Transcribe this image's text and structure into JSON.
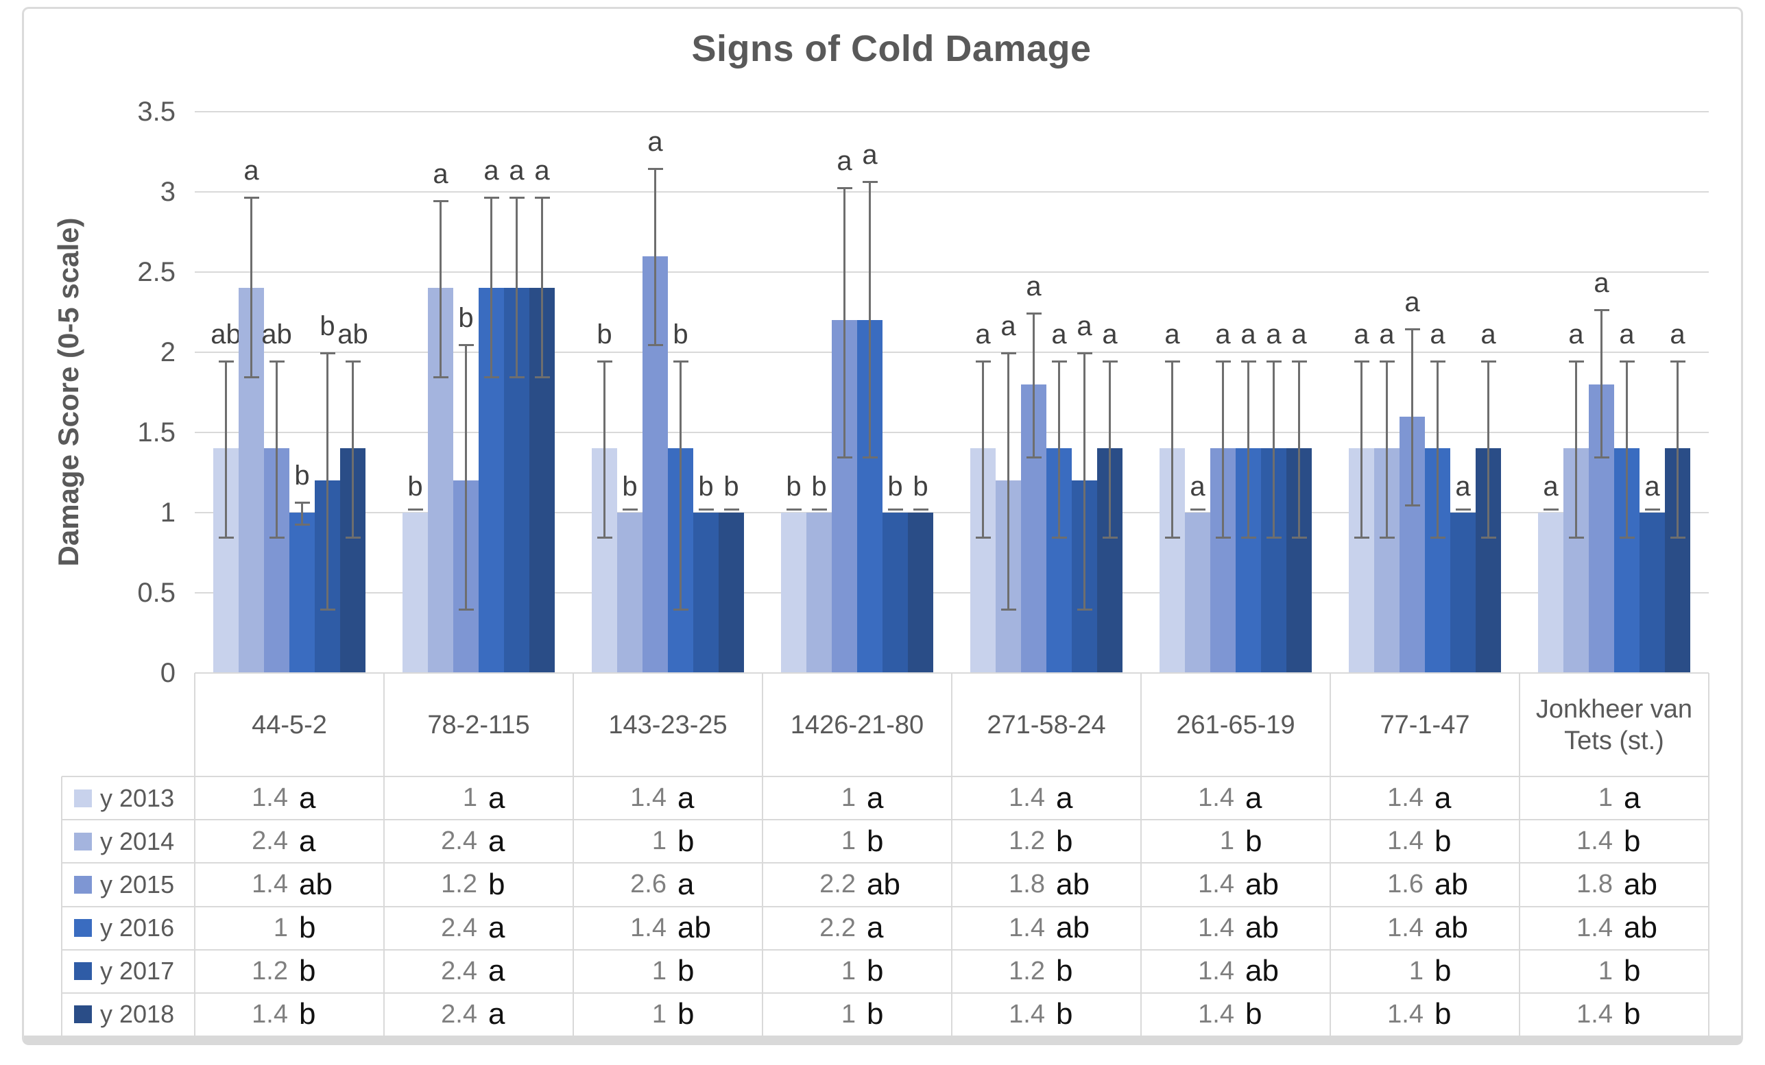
{
  "chart_data": {
    "type": "bar",
    "title": "Signs of Cold Damage",
    "ylabel": "Damage Score (0-5 scale)",
    "ylim": [
      0,
      3.5
    ],
    "ytick_labels": [
      "0",
      "0.5",
      "1",
      "1.5",
      "2",
      "2.5",
      "3",
      "3.5"
    ],
    "ytick_values": [
      0,
      0.5,
      1,
      1.5,
      2,
      2.5,
      3,
      3.5
    ],
    "grid": true,
    "legend_position": "table-left",
    "error_bars": true,
    "categories": [
      "44-5-2",
      "78-2-115",
      "143-23-25",
      "1426-21-80",
      "271-58-24",
      "261-65-19",
      "77-1-47",
      "Jonkheer van Tets (st.)"
    ],
    "series": [
      {
        "name": "y 2013",
        "color": "#c8d2ec",
        "values": [
          1.4,
          1,
          1.4,
          1,
          1.4,
          1.4,
          1.4,
          1
        ],
        "err_lo": [
          0.85,
          null,
          0.85,
          null,
          0.85,
          0.85,
          0.85,
          null
        ],
        "err_hi": [
          1.95,
          null,
          1.95,
          null,
          1.95,
          1.95,
          1.95,
          null
        ],
        "bar_letters": [
          "ab",
          "b",
          "b",
          "b",
          "a",
          "a",
          "a",
          "a"
        ],
        "table_letters": [
          "a",
          "a",
          "a",
          "a",
          "a",
          "a",
          "a",
          "a"
        ]
      },
      {
        "name": "y 2014",
        "color": "#a4b4de",
        "values": [
          2.4,
          2.4,
          1,
          1,
          1.2,
          1,
          1.4,
          1.4
        ],
        "err_lo": [
          1.85,
          1.85,
          null,
          null,
          0.4,
          null,
          0.85,
          0.85
        ],
        "err_hi": [
          2.97,
          2.95,
          null,
          null,
          2.0,
          null,
          1.95,
          1.95
        ],
        "bar_letters": [
          "a",
          "a",
          "b",
          "b",
          "a",
          "a",
          "a",
          "a"
        ],
        "table_letters": [
          "a",
          "a",
          "b",
          "b",
          "b",
          "b",
          "b",
          "b"
        ]
      },
      {
        "name": "y 2015",
        "color": "#7e96d3",
        "values": [
          1.4,
          1.2,
          2.6,
          2.2,
          1.8,
          1.4,
          1.6,
          1.8
        ],
        "err_lo": [
          0.85,
          0.4,
          2.05,
          1.35,
          1.35,
          0.85,
          1.05,
          1.35
        ],
        "err_hi": [
          1.95,
          2.05,
          3.15,
          3.03,
          2.25,
          1.95,
          2.15,
          2.27
        ],
        "bar_letters": [
          "ab",
          "b",
          "a",
          "a",
          "a",
          "a",
          "a",
          "a"
        ],
        "table_letters": [
          "ab",
          "b",
          "a",
          "ab",
          "ab",
          "ab",
          "ab",
          "ab"
        ]
      },
      {
        "name": "y 2016",
        "color": "#3a6cc0",
        "values": [
          1,
          2.4,
          1.4,
          2.2,
          1.4,
          1.4,
          1.4,
          1.4
        ],
        "err_lo": [
          0.93,
          1.85,
          0.4,
          1.35,
          0.85,
          0.85,
          0.85,
          0.85
        ],
        "err_hi": [
          1.07,
          2.97,
          1.95,
          3.07,
          1.95,
          1.95,
          1.95,
          1.95
        ],
        "bar_letters": [
          "b",
          "a",
          "b",
          "a",
          "a",
          "a",
          "a",
          "a"
        ],
        "table_letters": [
          "b",
          "a",
          "ab",
          "a",
          "ab",
          "ab",
          "ab",
          "ab"
        ]
      },
      {
        "name": "y 2017",
        "color": "#2f5ca6",
        "values": [
          1.2,
          2.4,
          1,
          1,
          1.2,
          1.4,
          1,
          1
        ],
        "err_lo": [
          0.4,
          1.85,
          null,
          null,
          0.4,
          0.85,
          null,
          null
        ],
        "err_hi": [
          2.0,
          2.97,
          null,
          null,
          2.0,
          1.95,
          null,
          null
        ],
        "bar_letters": [
          "b",
          "a",
          "b",
          "b",
          "a",
          "a",
          "a",
          "a"
        ],
        "table_letters": [
          "b",
          "a",
          "b",
          "b",
          "b",
          "ab",
          "b",
          "b"
        ]
      },
      {
        "name": "y 2018",
        "color": "#2a4d87",
        "values": [
          1.4,
          2.4,
          1,
          1,
          1.4,
          1.4,
          1.4,
          1.4
        ],
        "err_lo": [
          0.85,
          1.85,
          null,
          null,
          0.85,
          0.85,
          0.85,
          0.85
        ],
        "err_hi": [
          1.95,
          2.97,
          null,
          null,
          1.95,
          1.95,
          1.95,
          1.95
        ],
        "bar_letters": [
          "ab",
          "a",
          "b",
          "b",
          "a",
          "a",
          "a",
          "a"
        ],
        "table_letters": [
          "b",
          "a",
          "b",
          "b",
          "b",
          "b",
          "b",
          "b"
        ]
      }
    ]
  }
}
